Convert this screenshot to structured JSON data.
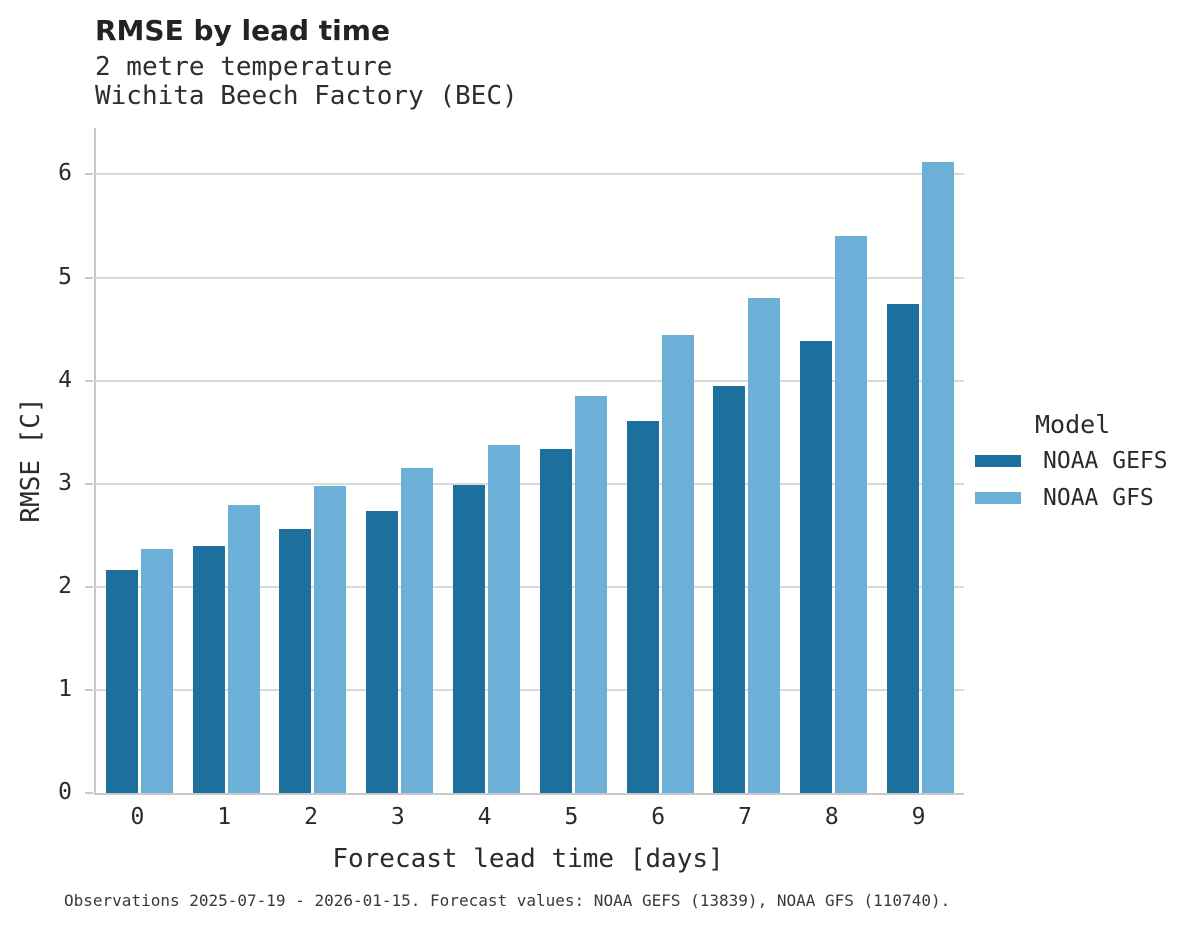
{
  "header": {
    "title": "RMSE by lead time",
    "subtitle_line1": "2 metre temperature",
    "subtitle_line2": "Wichita Beech Factory (BEC)"
  },
  "chart_data": {
    "type": "bar",
    "title": "RMSE by lead time",
    "subtitle": [
      "2 metre temperature",
      "Wichita Beech Factory (BEC)"
    ],
    "categories": [
      "0",
      "1",
      "2",
      "3",
      "4",
      "5",
      "6",
      "7",
      "8",
      "9"
    ],
    "series": [
      {
        "name": "NOAA GEFS",
        "color": "#1d6f9e",
        "values": [
          2.16,
          2.4,
          2.56,
          2.74,
          2.99,
          3.34,
          3.61,
          3.95,
          4.38,
          4.74
        ]
      },
      {
        "name": "NOAA GFS",
        "color": "#6cb0d8",
        "values": [
          2.37,
          2.79,
          2.98,
          3.15,
          3.38,
          3.85,
          4.44,
          4.8,
          5.4,
          6.12
        ]
      }
    ],
    "xlabel": "Forecast lead time [days]",
    "ylabel": "RMSE [C]",
    "ylim": [
      0,
      6.45
    ],
    "yticks": [
      0,
      1,
      2,
      3,
      4,
      5,
      6
    ],
    "grid": "horizontal",
    "grid_color": "#d9d9d9",
    "axis_color": "#c9c9c9",
    "legend_title": "Model",
    "legend_position": "right"
  },
  "footer": {
    "text": "Observations 2025-07-19 - 2026-01-15. Forecast values: NOAA GEFS (13839), NOAA GFS (110740)."
  }
}
